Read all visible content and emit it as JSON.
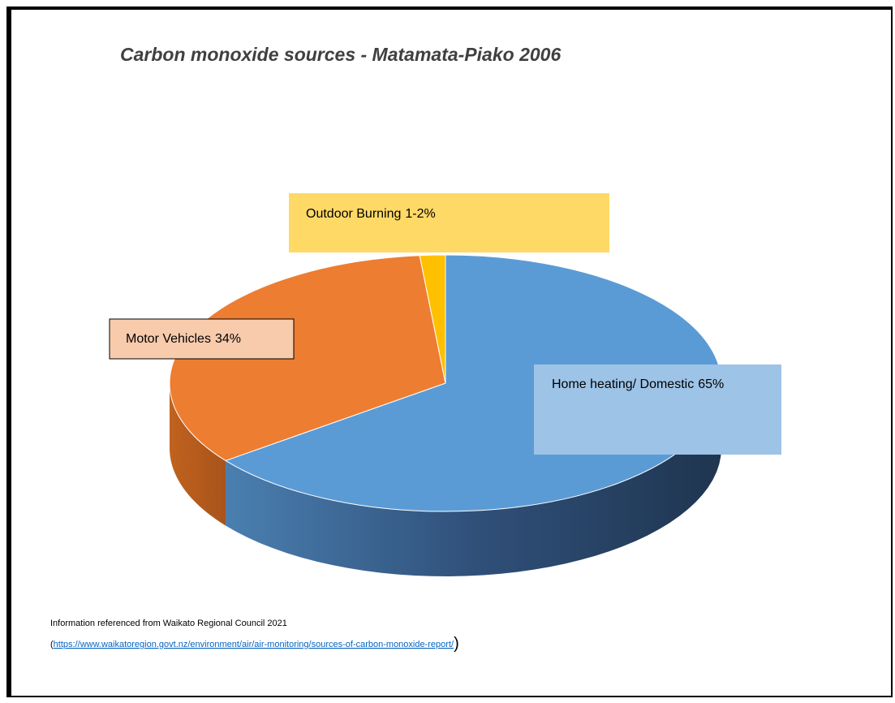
{
  "chart_data": {
    "type": "pie3d",
    "title": "Carbon monoxide sources - Matamata-Piako 2006",
    "categories": [
      "Home heating/ Domestic",
      "Motor Vehicles",
      "Outdoor Burning"
    ],
    "values": [
      65,
      34,
      1.5
    ],
    "value_labels": [
      "65%",
      "34%",
      "1-2%"
    ],
    "colors": [
      "#5b9bd5",
      "#ed7d31",
      "#ffc000"
    ]
  },
  "source": {
    "text": "Information referenced from Waikato Regional Council 2021",
    "open": "(",
    "url": "https://www.waikatoregion.govt.nz/environment/air/air-monitoring/sources-of-carbon-monoxide-report/",
    "close": ")"
  }
}
